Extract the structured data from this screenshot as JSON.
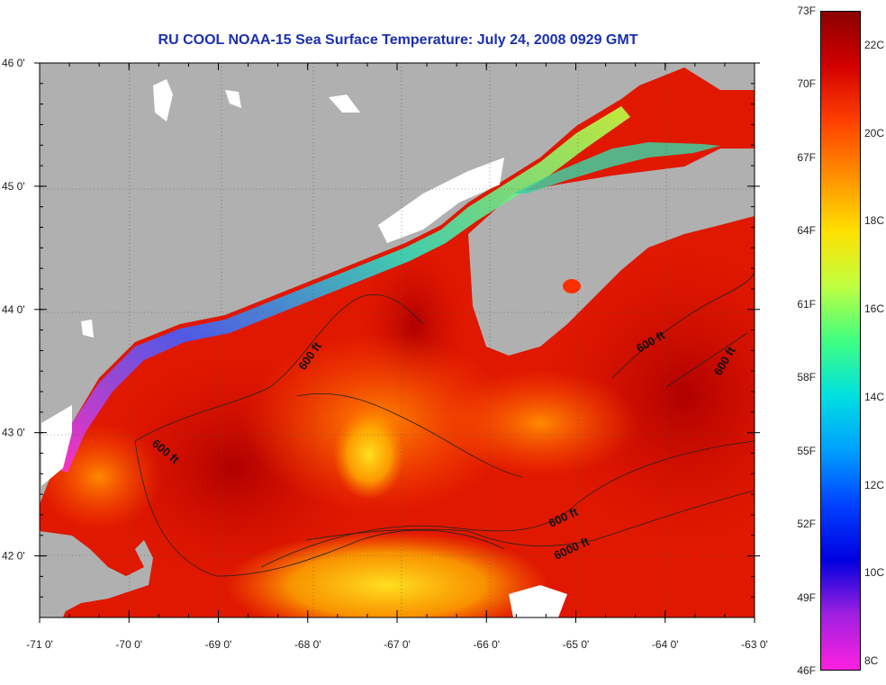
{
  "title": "RU COOL  NOAA-15  Sea Surface Temperature:  July 24, 2008 0929 GMT",
  "map": {
    "lon_range": [
      -71,
      -63
    ],
    "lat_range": [
      41.5,
      46
    ],
    "lon_ticks": [
      "-71 0'",
      "-70 0'",
      "-69 0'",
      "-68 0'",
      "-67 0'",
      "-66 0'",
      "-65 0'",
      "-64 0'",
      "-63 0'"
    ],
    "lat_ticks": [
      "46 0'",
      "45 0'",
      "44 0'",
      "43 0'",
      "42 0'"
    ],
    "land_color": "#b0b0b0",
    "cloud_color": "#ffffff",
    "contour_labels": [
      "600 ft",
      "600 ft",
      "600 ft",
      "600 ft",
      "600 ft",
      "6000 ft"
    ]
  },
  "colorbar": {
    "fahrenheit": [
      "73F",
      "70F",
      "67F",
      "64F",
      "61F",
      "58F",
      "55F",
      "52F",
      "49F",
      "46F"
    ],
    "celsius": [
      "22C",
      "20C",
      "18C",
      "16C",
      "14C",
      "12C",
      "10C",
      "8C"
    ],
    "colors": [
      "#8b0000",
      "#d40000",
      "#ff4000",
      "#ff9000",
      "#ffe000",
      "#c0ff40",
      "#40ff80",
      "#00e0e0",
      "#00a0ff",
      "#0040ff",
      "#0000e0",
      "#a020e0",
      "#ff20e0"
    ]
  }
}
